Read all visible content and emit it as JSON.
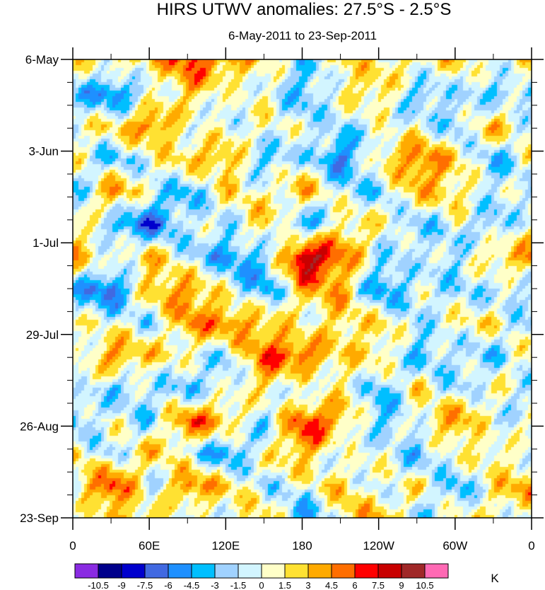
{
  "chart_data": {
    "type": "heatmap",
    "title": "HIRS UTWV anomalies: 27.5°S - 2.5°S",
    "subtitle": "6-May-2011 to 23-Sep-2011",
    "xlabel": "Longitude",
    "ylabel": "Time",
    "x_ticks": [
      "0",
      "60E",
      "120E",
      "180",
      "120W",
      "60W",
      "0"
    ],
    "x_range": [
      0,
      360
    ],
    "y_ticks": [
      "6-May",
      "3-Jun",
      "1-Jul",
      "29-Jul",
      "26-Aug",
      "23-Sep"
    ],
    "y_range_days": [
      0,
      140
    ],
    "grid_lon": [
      0,
      30,
      60,
      90,
      120,
      150,
      180,
      210,
      240,
      270,
      300,
      330,
      360
    ],
    "grid_day": [
      0,
      10,
      20,
      30,
      40,
      50,
      60,
      70,
      80,
      90,
      100,
      110,
      120,
      130,
      140
    ],
    "values": [
      [
        1,
        0,
        3,
        7,
        4,
        0,
        -2,
        3,
        0,
        1,
        3,
        0,
        2
      ],
      [
        -4,
        -6,
        0,
        3,
        -2,
        1,
        -3,
        0,
        2,
        -3,
        0,
        -4,
        -3
      ],
      [
        0,
        3,
        6,
        -2,
        0,
        2,
        -1,
        -3,
        0,
        1,
        -4,
        3,
        0
      ],
      [
        2,
        -3,
        -2,
        3,
        5,
        -4,
        -2,
        -6,
        3,
        5,
        1,
        -3,
        2
      ],
      [
        -3,
        4,
        -1,
        -3,
        2,
        -1,
        4,
        0,
        -3,
        2,
        3,
        0,
        -2
      ],
      [
        1,
        -4,
        -6,
        0,
        -3,
        3,
        -4,
        2,
        0,
        -3,
        1,
        -4,
        0
      ],
      [
        3,
        1,
        4,
        -3,
        -5,
        -2,
        10.8,
        4,
        -2,
        1,
        -3,
        2,
        4
      ],
      [
        -3,
        -6,
        2,
        4,
        1,
        -4,
        2,
        3,
        -4,
        -1,
        -3,
        -2,
        0
      ],
      [
        2,
        -1,
        -3,
        5,
        6,
        2,
        -1,
        4,
        2,
        -3,
        1,
        3,
        -3
      ],
      [
        -2,
        4,
        3,
        1,
        -3,
        5,
        7,
        2,
        1,
        -4,
        0,
        -3,
        1
      ],
      [
        0,
        -3,
        0,
        -4,
        -2,
        3,
        -1,
        0,
        -4,
        3,
        -2,
        0,
        -3
      ],
      [
        -4,
        2,
        -3,
        5,
        4,
        -2,
        6,
        3,
        -3,
        1,
        4,
        -2,
        2
      ],
      [
        3,
        -2,
        2,
        -1,
        -4,
        0,
        3,
        -1,
        2,
        -5,
        0,
        3,
        -1
      ],
      [
        1,
        6,
        -2,
        7,
        2,
        -3,
        0,
        4,
        -2,
        1,
        -3,
        2,
        4
      ],
      [
        -3,
        2,
        4,
        -2,
        -1,
        3,
        -4,
        1,
        3,
        -2,
        2,
        0,
        -2
      ]
    ],
    "colorbar": {
      "levels": [
        "-10.5",
        "-9",
        "-7.5",
        "-6",
        "-4.5",
        "-3",
        "-1.5",
        "0",
        "1.5",
        "3",
        "4.5",
        "6",
        "7.5",
        "9",
        "10.5"
      ],
      "colors": [
        "#8a2be2",
        "#00008b",
        "#0000cd",
        "#4169e1",
        "#1e90ff",
        "#00bfff",
        "#a0d2ff",
        "#d2f5ff",
        "#ffffc8",
        "#ffe132",
        "#ffaa00",
        "#ff6e00",
        "#ff0000",
        "#c80000",
        "#a02828",
        "#ff69b4"
      ],
      "units": "K"
    }
  }
}
